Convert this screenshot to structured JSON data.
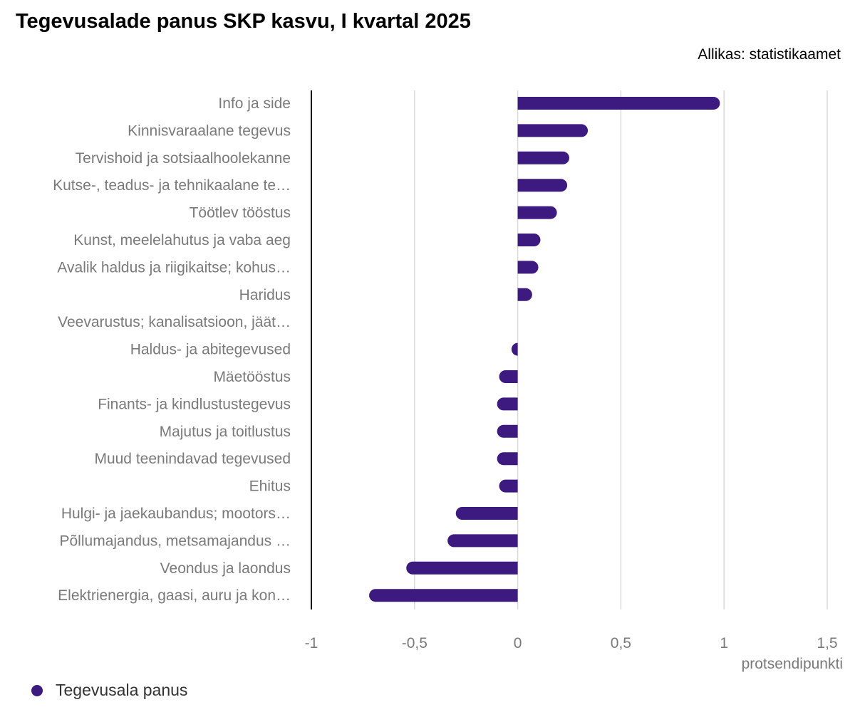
{
  "chart_data": {
    "type": "bar",
    "orientation": "horizontal",
    "title": "Tegevusalade panus SKP kasvu, I kvartal 2025",
    "source": "Allikas: statistikaamet",
    "xlabel": "protsendipunkti",
    "xlim": [
      -1,
      1.5
    ],
    "xticks": [
      -1,
      -0.5,
      0,
      0.5,
      1,
      1.5
    ],
    "xtick_labels": [
      "-1",
      "-0,5",
      "0",
      "0,5",
      "1",
      "1,5"
    ],
    "categories": [
      "Info ja side",
      "Kinnisvaraalane tegevus",
      "Tervishoid ja sotsiaalhoolekanne",
      "Kutse-, teadus- ja tehnikaalane te…",
      "Töötlev tööstus",
      "Kunst, meelelahutus ja vaba aeg",
      "Avalik haldus ja riigikaitse; kohus…",
      "Haridus",
      "Veevarustus; kanalisatsioon, jäät…",
      "Haldus- ja abitegevused",
      "Mäetööstus",
      "Finants- ja kindlustustegevus",
      "Majutus ja toitlustus",
      "Muud teenindavad tegevused",
      "Ehitus",
      "Hulgi- ja jaekaubandus; mootors…",
      "Põllumajandus, metsamajandus …",
      "Veondus ja laondus",
      "Elektrienergia, gaasi, auru ja kon…"
    ],
    "series": [
      {
        "name": "Tegevusala panus",
        "color": "#3d1a80",
        "values": [
          0.98,
          0.34,
          0.25,
          0.24,
          0.19,
          0.11,
          0.1,
          0.07,
          0.0,
          -0.03,
          -0.09,
          -0.1,
          -0.1,
          -0.1,
          -0.09,
          -0.3,
          -0.34,
          -0.54,
          -0.72
        ]
      }
    ],
    "legend": "bottom-left",
    "grid": true
  }
}
